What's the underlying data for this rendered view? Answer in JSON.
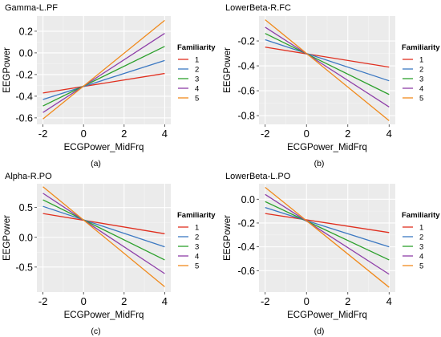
{
  "figure": {
    "legend_title": "Familiarity",
    "legend_levels": [
      "1",
      "2",
      "3",
      "4",
      "5"
    ],
    "series_colors": [
      "#e02f1f",
      "#3b78c2",
      "#2ca02c",
      "#8e3fa8",
      "#f08a1c"
    ]
  },
  "chart_data": [
    {
      "type": "line",
      "title": "Gamma-L.PF",
      "caption": "(a)",
      "xlabel": "ECGPower_MidFrq",
      "ylabel": "EEGPower",
      "xlim": [
        -2.3,
        4.3
      ],
      "ylim": [
        -0.66,
        0.34
      ],
      "xticks": [
        -2,
        0,
        2,
        4
      ],
      "yticks": [
        -0.6,
        -0.4,
        -0.2,
        0.0,
        0.2
      ],
      "ytick_labels": [
        "-0.6",
        "-0.4",
        "-0.2",
        "0.0",
        "0.2"
      ],
      "grid": true,
      "legend_position": "right",
      "x": [
        -2,
        4
      ],
      "series": [
        {
          "name": "1",
          "values": [
            -0.37,
            -0.19
          ]
        },
        {
          "name": "2",
          "values": [
            -0.43,
            -0.07
          ]
        },
        {
          "name": "3",
          "values": [
            -0.49,
            0.06
          ]
        },
        {
          "name": "4",
          "values": [
            -0.55,
            0.18
          ]
        },
        {
          "name": "5",
          "values": [
            -0.61,
            0.3
          ]
        }
      ]
    },
    {
      "type": "line",
      "title": "LowerBeta-R.FC",
      "caption": "(b)",
      "xlabel": "ECGPower_MidFrq",
      "ylabel": "EEGPower",
      "xlim": [
        -2.3,
        4.3
      ],
      "ylim": [
        -0.87,
        0.0
      ],
      "xticks": [
        -2,
        0,
        2,
        4
      ],
      "yticks": [
        -0.8,
        -0.6,
        -0.4,
        -0.2
      ],
      "ytick_labels": [
        "-0.8",
        "-0.6",
        "-0.4",
        "-0.2"
      ],
      "grid": true,
      "legend_position": "right",
      "x": [
        -2,
        4
      ],
      "series": [
        {
          "name": "1",
          "values": [
            -0.25,
            -0.41
          ]
        },
        {
          "name": "2",
          "values": [
            -0.19,
            -0.52
          ]
        },
        {
          "name": "3",
          "values": [
            -0.14,
            -0.63
          ]
        },
        {
          "name": "4",
          "values": [
            -0.09,
            -0.73
          ]
        },
        {
          "name": "5",
          "values": [
            -0.03,
            -0.84
          ]
        }
      ]
    },
    {
      "type": "line",
      "title": "Alpha-R.PO",
      "caption": "(c)",
      "xlabel": "ECGPower_MidFrq",
      "ylabel": "EEGPower",
      "xlim": [
        -2.3,
        4.3
      ],
      "ylim": [
        -0.92,
        0.9
      ],
      "xticks": [
        -2,
        0,
        2,
        4
      ],
      "yticks": [
        -0.5,
        0.0,
        0.5
      ],
      "ytick_labels": [
        "-0.5",
        "0.0",
        "0.5"
      ],
      "grid": true,
      "legend_position": "right",
      "x": [
        -2,
        4
      ],
      "series": [
        {
          "name": "1",
          "values": [
            0.4,
            0.06
          ]
        },
        {
          "name": "2",
          "values": [
            0.52,
            -0.16
          ]
        },
        {
          "name": "3",
          "values": [
            0.63,
            -0.38
          ]
        },
        {
          "name": "4",
          "values": [
            0.74,
            -0.61
          ]
        },
        {
          "name": "5",
          "values": [
            0.85,
            -0.83
          ]
        }
      ]
    },
    {
      "type": "line",
      "title": "LowerBeta-L.PO",
      "caption": "(d)",
      "xlabel": "ECGPower_MidFrq",
      "ylabel": "EEGPower",
      "xlim": [
        -2.3,
        4.3
      ],
      "ylim": [
        -0.78,
        0.13
      ],
      "xticks": [
        -2,
        0,
        2,
        4
      ],
      "yticks": [
        -0.6,
        -0.4,
        -0.2,
        0.0
      ],
      "ytick_labels": [
        "-0.6",
        "-0.4",
        "-0.2",
        "0.0"
      ],
      "grid": true,
      "legend_position": "right",
      "x": [
        -2,
        4
      ],
      "series": [
        {
          "name": "1",
          "values": [
            -0.12,
            -0.28
          ]
        },
        {
          "name": "2",
          "values": [
            -0.07,
            -0.4
          ]
        },
        {
          "name": "3",
          "values": [
            -0.02,
            -0.51
          ]
        },
        {
          "name": "4",
          "values": [
            0.04,
            -0.63
          ]
        },
        {
          "name": "5",
          "values": [
            0.1,
            -0.74
          ]
        }
      ]
    }
  ]
}
